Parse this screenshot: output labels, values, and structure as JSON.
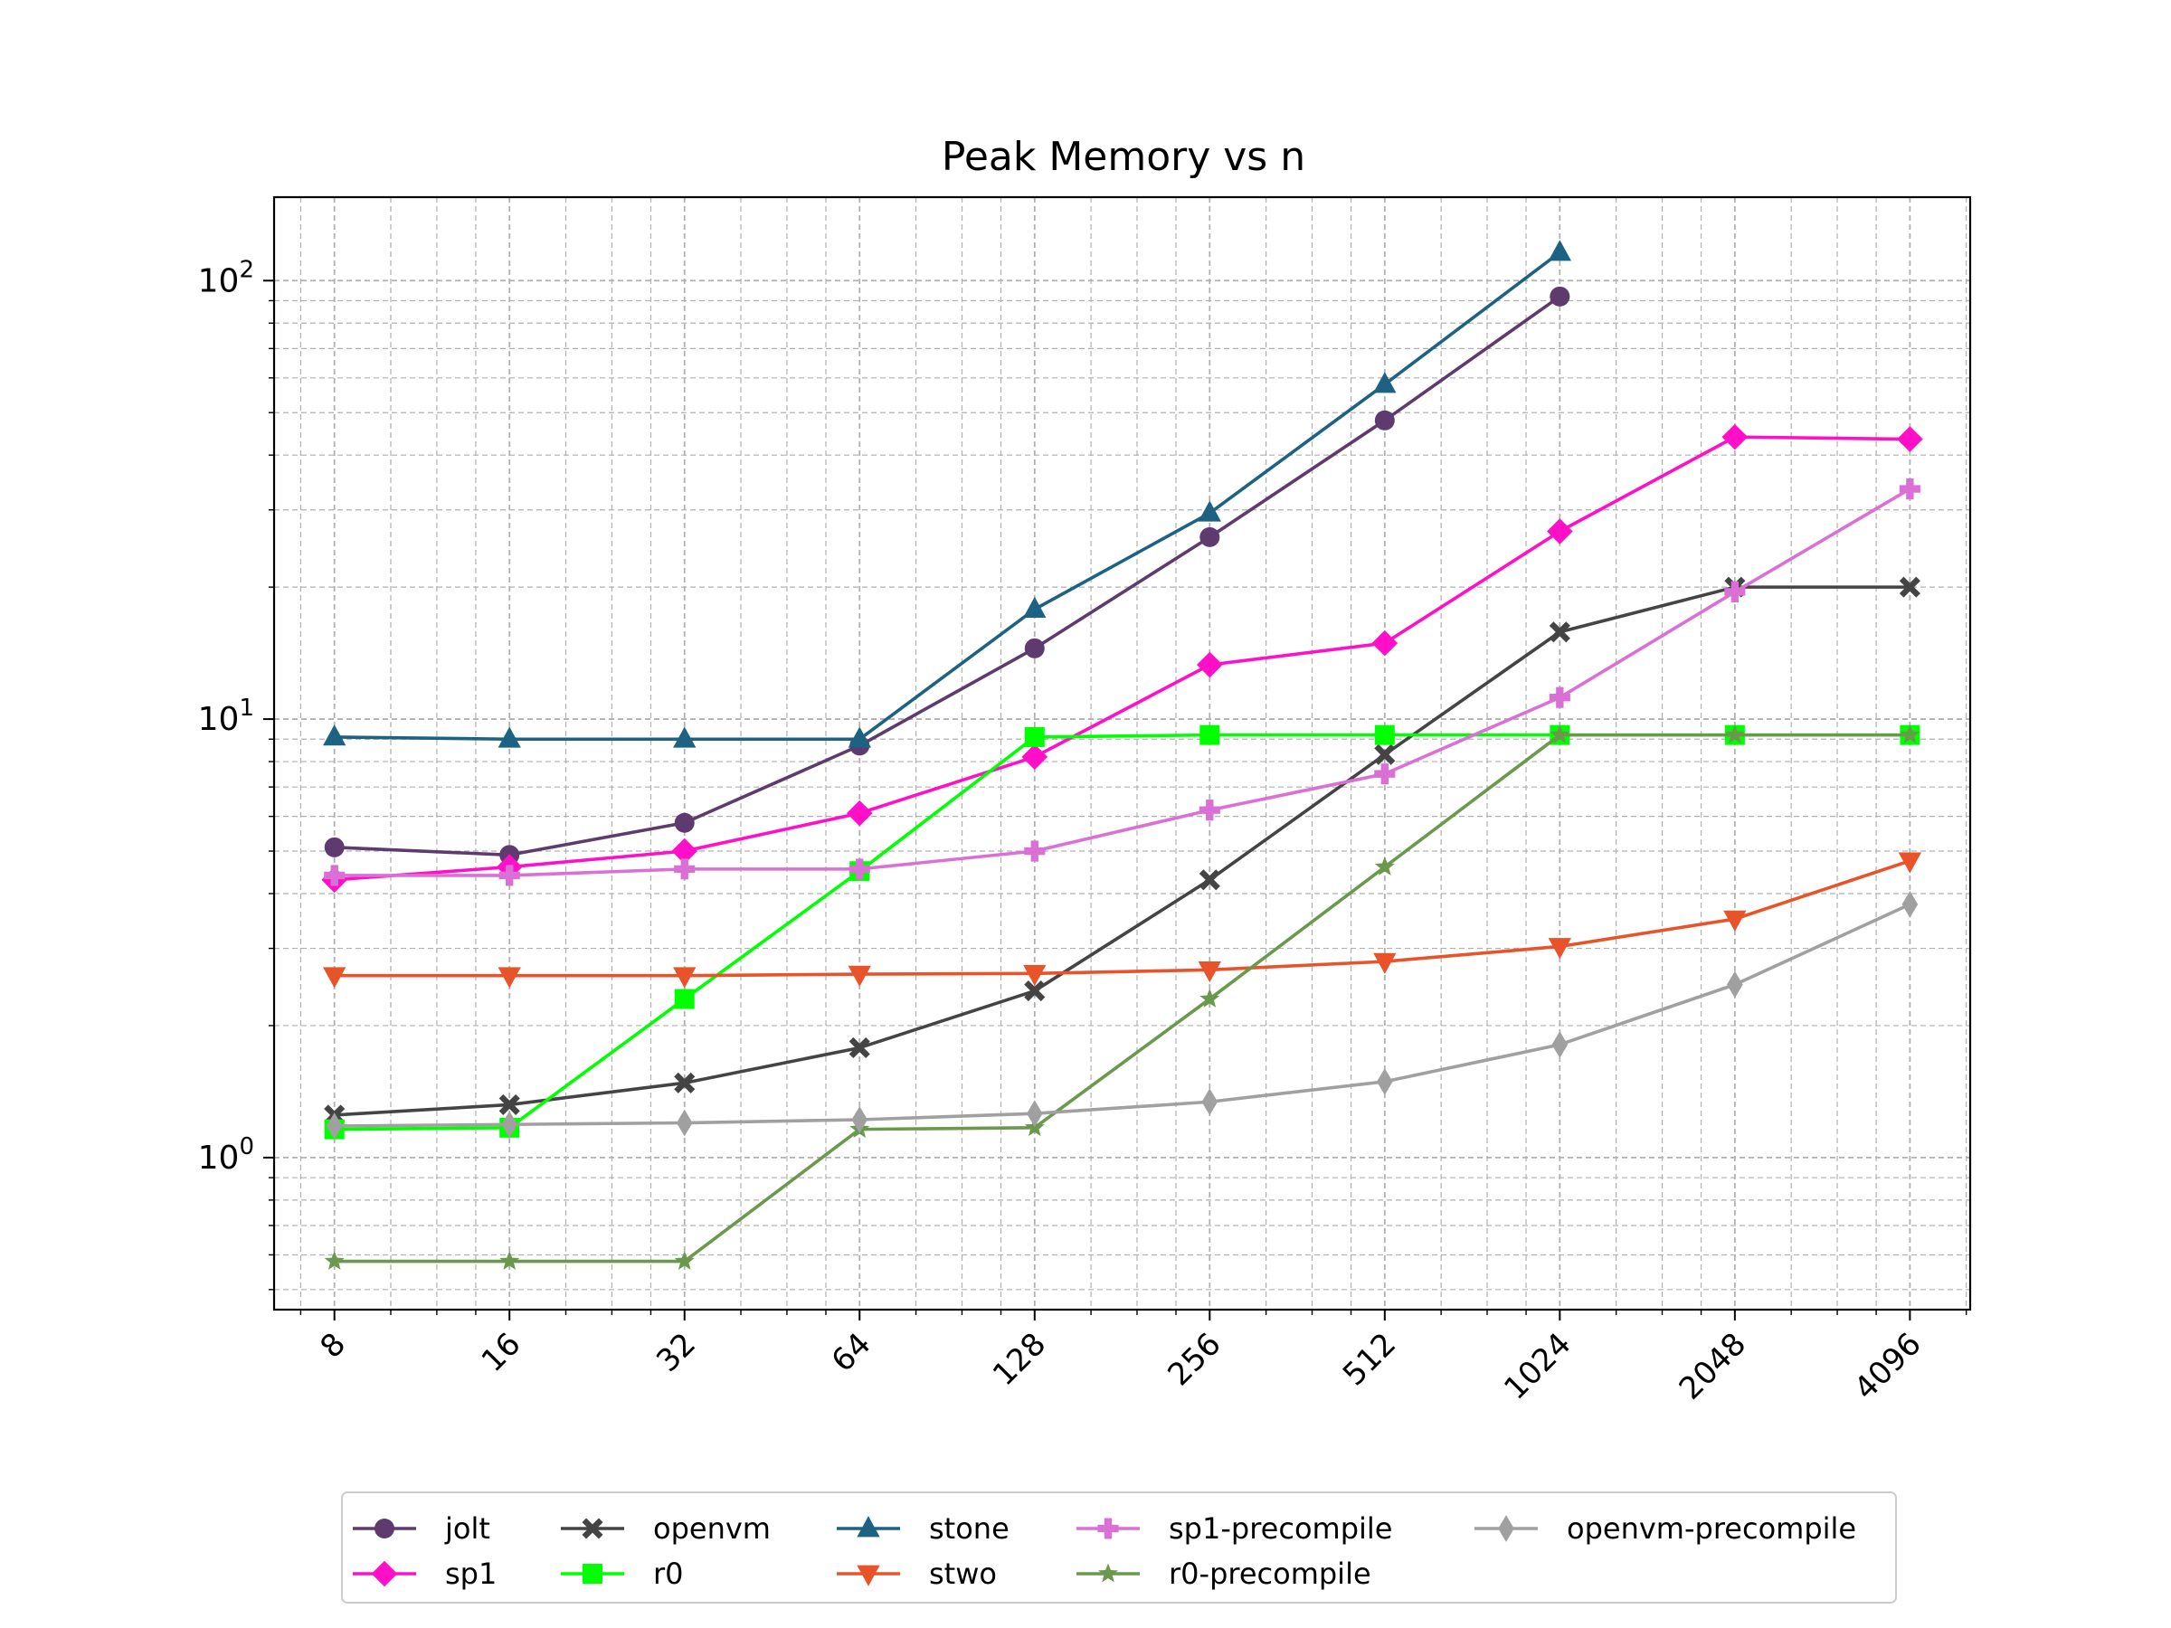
{
  "chart_data": {
    "type": "line",
    "title": "Peak Memory vs n",
    "xlabel": "",
    "ylabel": "",
    "x_scale": "log2",
    "y_scale": "log10",
    "x": [
      8,
      16,
      32,
      64,
      128,
      256,
      512,
      1024,
      2048,
      4096
    ],
    "x_tick_labels": [
      "8",
      "16",
      "32",
      "64",
      "128",
      "256",
      "512",
      "1024",
      "2048",
      "4096"
    ],
    "y_tick_labels": [
      {
        "value": 1,
        "base": "10",
        "exp": "0"
      },
      {
        "value": 10,
        "base": "10",
        "exp": "1"
      },
      {
        "value": 100,
        "base": "10",
        "exp": "2"
      }
    ],
    "xlim": [
      6.3,
      5200
    ],
    "ylim": [
      0.45,
      155
    ],
    "grid": true,
    "legend_position": "bottom",
    "series": [
      {
        "name": "jolt",
        "color": "#5e3a6e",
        "marker": "circle",
        "values": [
          5.1,
          4.9,
          5.8,
          8.7,
          14.5,
          26,
          48,
          92,
          null,
          null
        ]
      },
      {
        "name": "sp1",
        "color": "#ff10c8",
        "marker": "diamond",
        "values": [
          4.3,
          4.6,
          5.0,
          6.1,
          8.2,
          13.3,
          14.9,
          26.8,
          44,
          43.5
        ]
      },
      {
        "name": "openvm",
        "color": "#444444",
        "marker": "x-filled",
        "values": [
          1.25,
          1.32,
          1.48,
          1.78,
          2.4,
          4.3,
          8.3,
          15.8,
          20,
          20
        ]
      },
      {
        "name": "r0",
        "color": "#00ff00",
        "marker": "square",
        "values": [
          1.16,
          1.17,
          2.3,
          4.5,
          9.1,
          9.2,
          9.2,
          9.2,
          9.2,
          9.2
        ]
      },
      {
        "name": "stone",
        "color": "#1d6282",
        "marker": "triangle-up",
        "values": [
          9.1,
          9.0,
          9.0,
          9.0,
          17.8,
          29.5,
          58,
          116,
          null,
          null
        ]
      },
      {
        "name": "stwo",
        "color": "#e8532a",
        "marker": "triangle-down",
        "values": [
          2.6,
          2.6,
          2.6,
          2.62,
          2.63,
          2.68,
          2.8,
          3.03,
          3.5,
          4.75
        ]
      },
      {
        "name": "sp1-precompile",
        "color": "#da70d6",
        "marker": "plus-filled",
        "values": [
          4.4,
          4.4,
          4.55,
          4.55,
          5.0,
          6.2,
          7.5,
          11.2,
          19.5,
          33.5
        ]
      },
      {
        "name": "r0-precompile",
        "color": "#6a994e",
        "marker": "star",
        "values": [
          0.58,
          0.58,
          0.58,
          1.16,
          1.17,
          2.3,
          4.6,
          9.2,
          9.2,
          9.2
        ]
      },
      {
        "name": "openvm-precompile",
        "color": "#a0a0a0",
        "marker": "thin-diamond",
        "values": [
          1.18,
          1.19,
          1.2,
          1.22,
          1.26,
          1.34,
          1.49,
          1.81,
          2.48,
          3.78
        ]
      }
    ]
  }
}
